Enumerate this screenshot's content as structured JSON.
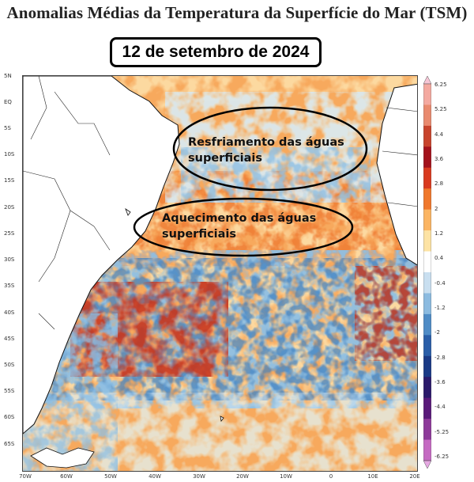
{
  "title": "Anomalias Médias da Temperatura da Superfície do Mar (TSM)",
  "date": "12 de setembro de 2024",
  "annotations": {
    "cooling": [
      "Resfriamento das águas",
      "superficiais"
    ],
    "warming": [
      "Aquecimento das águas",
      "superficiais"
    ]
  },
  "latitude_labels": [
    "5N",
    "EQ",
    "5S",
    "10S",
    "15S",
    "20S",
    "25S",
    "30S",
    "35S",
    "40S",
    "45S",
    "50S",
    "55S",
    "60S",
    "65S"
  ],
  "longitude_labels": [
    "70W",
    "60W",
    "50W",
    "40W",
    "30W",
    "20W",
    "10W",
    "0",
    "10E",
    "20E"
  ],
  "colorbar": {
    "labels": [
      "6.25",
      "5.25",
      "4.4",
      "3.6",
      "2.8",
      "2",
      "1.2",
      "0.4",
      "-0.4",
      "-1.2",
      "-2",
      "-2.8",
      "-3.6",
      "-4.4",
      "-5.25",
      "-6.25"
    ],
    "colors": [
      "#f7c6d6",
      "#f4a9a0",
      "#e98a6f",
      "#c8442d",
      "#a3121c",
      "#d93a1f",
      "#f0782c",
      "#fbb563",
      "#fde3a4",
      "#ffffff",
      "#c9dff0",
      "#8cbbe0",
      "#4f8cc6",
      "#2a5ea8",
      "#1a3a86",
      "#2b1a6b",
      "#5a1a7a",
      "#8e3a9a",
      "#c56ac2",
      "#e6a8e2"
    ]
  },
  "map_colors": {
    "land": "#ffffff",
    "coast": "#111111",
    "warm_light": "#fcd9a0",
    "warm": "#f7a95d",
    "warm_strong": "#ef7b32",
    "hot": "#c8361f",
    "cool_light": "#d6e8f4",
    "cool": "#8fc0e4",
    "cool_strong": "#3e7fc0"
  }
}
